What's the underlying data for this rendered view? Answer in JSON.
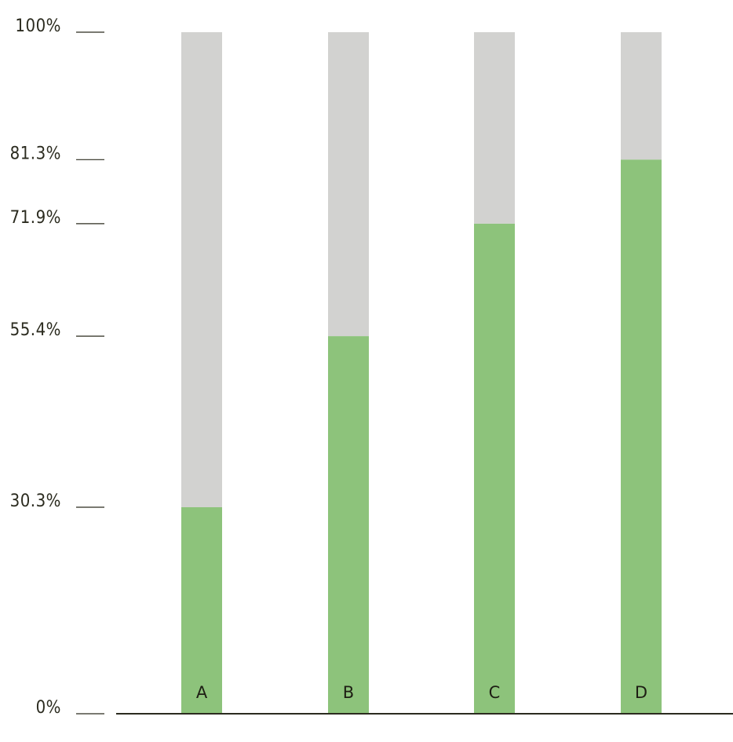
{
  "chart_data": {
    "type": "bar",
    "stacked_to": 100,
    "categories": [
      "A",
      "B",
      "C",
      "D"
    ],
    "values": [
      30.3,
      55.4,
      71.9,
      81.3
    ],
    "remainder_values": [
      69.7,
      44.6,
      28.1,
      18.7
    ],
    "ylim": [
      0,
      100
    ],
    "y_ticks": [
      {
        "value": 0,
        "label": "0%"
      },
      {
        "value": 30.3,
        "label": "30.3%"
      },
      {
        "value": 55.4,
        "label": "55.4%"
      },
      {
        "value": 71.9,
        "label": "71.9%"
      },
      {
        "value": 81.3,
        "label": "81.3%"
      },
      {
        "value": 100,
        "label": "100%"
      }
    ],
    "grid": false,
    "legend": "none",
    "colors": {
      "value": "#8dc37b",
      "remainder": "#d2d2d0",
      "text": "#2b2b1f"
    }
  }
}
